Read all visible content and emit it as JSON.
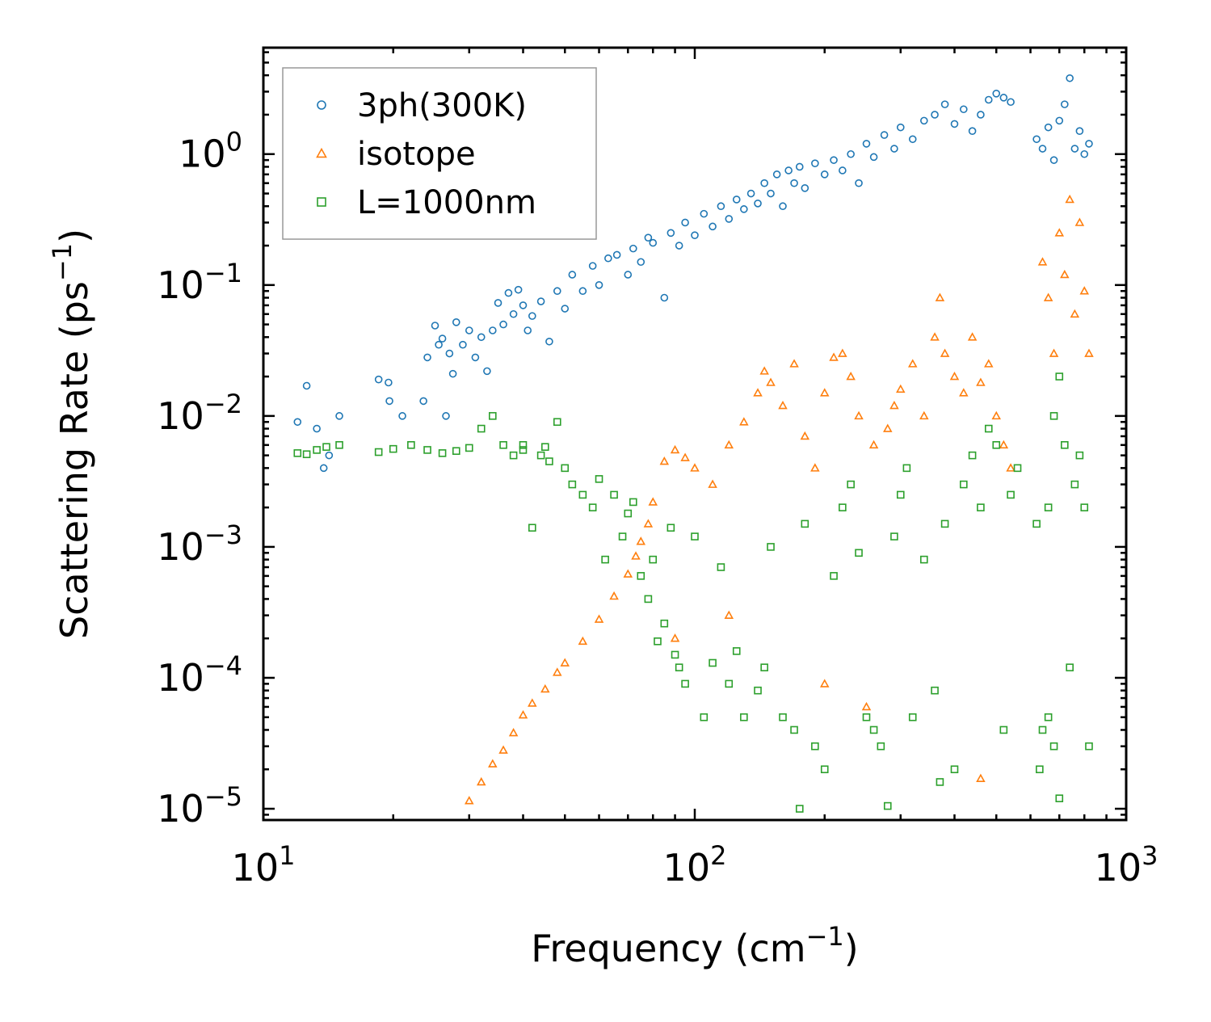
{
  "chart_data": {
    "type": "scatter",
    "title": "",
    "xlabel": "Frequency (cm",
    "xlabel_sup": "−1",
    "xlabel_end": ")",
    "ylabel": "Scattering Rate (ps",
    "ylabel_sup": "−1",
    "ylabel_end": ")",
    "xscale": "log",
    "yscale": "log",
    "xlim": [
      10,
      1000
    ],
    "ylim": [
      8.2e-06,
      6.5
    ],
    "grid": false,
    "legend_position": "upper-left",
    "x_ticks": [
      {
        "value": 10,
        "base": "10",
        "exp": "1"
      },
      {
        "value": 100,
        "base": "10",
        "exp": "2"
      },
      {
        "value": 1000,
        "base": "10",
        "exp": "3"
      }
    ],
    "y_ticks": [
      {
        "value": 1e-05,
        "base": "10",
        "exp": "−5"
      },
      {
        "value": 0.0001,
        "base": "10",
        "exp": "−4"
      },
      {
        "value": 0.001,
        "base": "10",
        "exp": "−3"
      },
      {
        "value": 0.01,
        "base": "10",
        "exp": "−2"
      },
      {
        "value": 0.1,
        "base": "10",
        "exp": "−1"
      },
      {
        "value": 1,
        "base": "10",
        "exp": "0"
      }
    ],
    "series": [
      {
        "name": "3ph(300K)",
        "marker": "circle",
        "color": "#1f77b4",
        "points": [
          [
            12.0,
            0.009
          ],
          [
            12.6,
            0.017
          ],
          [
            13.3,
            0.008
          ],
          [
            13.8,
            0.004
          ],
          [
            14.2,
            0.005
          ],
          [
            15.0,
            0.01
          ],
          [
            18.5,
            0.019
          ],
          [
            19.5,
            0.018
          ],
          [
            19.6,
            0.013
          ],
          [
            21.0,
            0.01
          ],
          [
            23.5,
            0.013
          ],
          [
            24.0,
            0.028
          ],
          [
            25.0,
            0.049
          ],
          [
            25.5,
            0.035
          ],
          [
            26.0,
            0.039
          ],
          [
            26.5,
            0.01
          ],
          [
            27.0,
            0.03
          ],
          [
            27.5,
            0.021
          ],
          [
            28.0,
            0.052
          ],
          [
            29.0,
            0.035
          ],
          [
            30.0,
            0.045
          ],
          [
            31.0,
            0.028
          ],
          [
            32.0,
            0.04
          ],
          [
            33.0,
            0.022
          ],
          [
            34.0,
            0.045
          ],
          [
            35.0,
            0.073
          ],
          [
            36.0,
            0.05
          ],
          [
            37.0,
            0.087
          ],
          [
            38.0,
            0.06
          ],
          [
            39.0,
            0.092
          ],
          [
            40.0,
            0.07
          ],
          [
            41.0,
            0.045
          ],
          [
            42.0,
            0.058
          ],
          [
            44.0,
            0.075
          ],
          [
            46.0,
            0.037
          ],
          [
            48.0,
            0.09
          ],
          [
            50.0,
            0.066
          ],
          [
            52.0,
            0.12
          ],
          [
            55.0,
            0.09
          ],
          [
            58.0,
            0.14
          ],
          [
            60.0,
            0.1
          ],
          [
            63.0,
            0.16
          ],
          [
            66.0,
            0.17
          ],
          [
            70.0,
            0.12
          ],
          [
            72.0,
            0.19
          ],
          [
            75.0,
            0.15
          ],
          [
            78.0,
            0.23
          ],
          [
            80.0,
            0.21
          ],
          [
            85.0,
            0.08
          ],
          [
            88.0,
            0.25
          ],
          [
            92.0,
            0.2
          ],
          [
            95.0,
            0.3
          ],
          [
            100.0,
            0.24
          ],
          [
            105.0,
            0.35
          ],
          [
            110.0,
            0.28
          ],
          [
            115.0,
            0.4
          ],
          [
            120.0,
            0.32
          ],
          [
            125.0,
            0.45
          ],
          [
            130.0,
            0.38
          ],
          [
            135.0,
            0.5
          ],
          [
            140.0,
            0.42
          ],
          [
            145.0,
            0.6
          ],
          [
            150.0,
            0.5
          ],
          [
            155.0,
            0.7
          ],
          [
            160.0,
            0.4
          ],
          [
            165.0,
            0.75
          ],
          [
            170.0,
            0.6
          ],
          [
            175.0,
            0.8
          ],
          [
            180.0,
            0.55
          ],
          [
            190.0,
            0.85
          ],
          [
            200.0,
            0.7
          ],
          [
            210.0,
            0.9
          ],
          [
            220.0,
            0.75
          ],
          [
            230.0,
            1.0
          ],
          [
            240.0,
            0.6
          ],
          [
            250.0,
            1.2
          ],
          [
            260.0,
            0.95
          ],
          [
            275.0,
            1.4
          ],
          [
            290.0,
            1.1
          ],
          [
            300.0,
            1.6
          ],
          [
            320.0,
            1.3
          ],
          [
            340.0,
            1.8
          ],
          [
            360.0,
            2.0
          ],
          [
            380.0,
            2.4
          ],
          [
            400.0,
            1.7
          ],
          [
            420.0,
            2.2
          ],
          [
            440.0,
            1.5
          ],
          [
            460.0,
            2.0
          ],
          [
            480.0,
            2.6
          ],
          [
            500.0,
            2.9
          ],
          [
            520.0,
            2.7
          ],
          [
            540.0,
            2.5
          ],
          [
            620.0,
            1.3
          ],
          [
            640.0,
            1.1
          ],
          [
            660.0,
            1.6
          ],
          [
            680.0,
            0.9
          ],
          [
            700.0,
            1.8
          ],
          [
            720.0,
            2.4
          ],
          [
            740.0,
            3.8
          ],
          [
            760.0,
            1.1
          ],
          [
            780.0,
            1.5
          ],
          [
            800.0,
            1.0
          ],
          [
            820.0,
            1.2
          ]
        ]
      },
      {
        "name": "isotope",
        "marker": "triangle",
        "color": "#ff7f0e",
        "points": [
          [
            30.0,
            1.15e-05
          ],
          [
            32.0,
            1.6e-05
          ],
          [
            34.0,
            2.2e-05
          ],
          [
            36.0,
            2.8e-05
          ],
          [
            38.0,
            3.8e-05
          ],
          [
            40.0,
            5.2e-05
          ],
          [
            42.0,
            6.4e-05
          ],
          [
            45.0,
            8.2e-05
          ],
          [
            48.0,
            0.00011
          ],
          [
            50.0,
            0.00013
          ],
          [
            55.0,
            0.00019
          ],
          [
            60.0,
            0.00028
          ],
          [
            65.0,
            0.00042
          ],
          [
            70.0,
            0.00062
          ],
          [
            73.0,
            0.00085
          ],
          [
            75.0,
            0.0011
          ],
          [
            78.0,
            0.0015
          ],
          [
            80.0,
            0.0022
          ],
          [
            85.0,
            0.0045
          ],
          [
            90.0,
            0.0055
          ],
          [
            95.0,
            0.0048
          ],
          [
            100.0,
            0.004
          ],
          [
            110.0,
            0.003
          ],
          [
            120.0,
            0.006
          ],
          [
            130.0,
            0.009
          ],
          [
            140.0,
            0.015
          ],
          [
            145.0,
            0.022
          ],
          [
            150.0,
            0.018
          ],
          [
            160.0,
            0.012
          ],
          [
            170.0,
            0.025
          ],
          [
            180.0,
            0.007
          ],
          [
            190.0,
            0.004
          ],
          [
            200.0,
            0.015
          ],
          [
            210.0,
            0.028
          ],
          [
            220.0,
            0.03
          ],
          [
            230.0,
            0.02
          ],
          [
            240.0,
            0.01
          ],
          [
            260.0,
            0.006
          ],
          [
            280.0,
            0.008
          ],
          [
            290.0,
            0.012
          ],
          [
            300.0,
            0.016
          ],
          [
            320.0,
            0.025
          ],
          [
            340.0,
            0.01
          ],
          [
            360.0,
            0.04
          ],
          [
            370.0,
            0.08
          ],
          [
            380.0,
            0.03
          ],
          [
            400.0,
            0.02
          ],
          [
            420.0,
            0.015
          ],
          [
            440.0,
            0.04
          ],
          [
            460.0,
            0.018
          ],
          [
            480.0,
            0.025
          ],
          [
            500.0,
            0.01
          ],
          [
            520.0,
            0.006
          ],
          [
            540.0,
            0.004
          ],
          [
            640.0,
            0.15
          ],
          [
            660.0,
            0.08
          ],
          [
            680.0,
            0.03
          ],
          [
            700.0,
            0.25
          ],
          [
            720.0,
            0.12
          ],
          [
            740.0,
            0.45
          ],
          [
            760.0,
            0.06
          ],
          [
            780.0,
            0.3
          ],
          [
            800.0,
            0.09
          ],
          [
            820.0,
            0.03
          ],
          [
            460.0,
            1.7e-05
          ],
          [
            200.0,
            9e-05
          ],
          [
            250.0,
            6e-05
          ],
          [
            120.0,
            0.0003
          ],
          [
            90.0,
            0.0002
          ]
        ]
      },
      {
        "name": "L=1000nm",
        "marker": "square",
        "color": "#2ca02c",
        "points": [
          [
            12.0,
            0.0052
          ],
          [
            12.6,
            0.0051
          ],
          [
            13.3,
            0.0055
          ],
          [
            14.0,
            0.0058
          ],
          [
            15.0,
            0.006
          ],
          [
            18.5,
            0.0053
          ],
          [
            20.0,
            0.0056
          ],
          [
            22.0,
            0.006
          ],
          [
            24.0,
            0.0055
          ],
          [
            26.0,
            0.0052
          ],
          [
            28.0,
            0.0054
          ],
          [
            30.0,
            0.0057
          ],
          [
            32.0,
            0.008
          ],
          [
            34.0,
            0.01
          ],
          [
            36.0,
            0.006
          ],
          [
            38.0,
            0.005
          ],
          [
            40.0,
            0.0055
          ],
          [
            42.0,
            0.0014
          ],
          [
            44.0,
            0.005
          ],
          [
            46.0,
            0.0045
          ],
          [
            48.0,
            0.009
          ],
          [
            50.0,
            0.004
          ],
          [
            52.0,
            0.003
          ],
          [
            55.0,
            0.0025
          ],
          [
            58.0,
            0.002
          ],
          [
            60.0,
            0.0033
          ],
          [
            62.0,
            0.0008
          ],
          [
            65.0,
            0.0025
          ],
          [
            68.0,
            0.0012
          ],
          [
            70.0,
            0.0018
          ],
          [
            72.0,
            0.0022
          ],
          [
            75.0,
            0.0006
          ],
          [
            78.0,
            0.0004
          ],
          [
            80.0,
            0.0008
          ],
          [
            82.0,
            0.00019
          ],
          [
            85.0,
            0.00026
          ],
          [
            88.0,
            0.0014
          ],
          [
            90.0,
            0.00015
          ],
          [
            92.0,
            0.00012
          ],
          [
            95.0,
            9e-05
          ],
          [
            100.0,
            0.0012
          ],
          [
            105.0,
            5e-05
          ],
          [
            110.0,
            0.00013
          ],
          [
            115.0,
            0.0007
          ],
          [
            120.0,
            9e-05
          ],
          [
            125.0,
            0.00016
          ],
          [
            130.0,
            5e-05
          ],
          [
            140.0,
            8e-05
          ],
          [
            145.0,
            0.00012
          ],
          [
            150.0,
            0.001
          ],
          [
            160.0,
            5e-05
          ],
          [
            170.0,
            4e-05
          ],
          [
            175.0,
            1e-05
          ],
          [
            180.0,
            0.0015
          ],
          [
            190.0,
            3e-05
          ],
          [
            200.0,
            2e-05
          ],
          [
            210.0,
            0.0006
          ],
          [
            220.0,
            0.002
          ],
          [
            230.0,
            0.003
          ],
          [
            240.0,
            0.0009
          ],
          [
            250.0,
            5e-05
          ],
          [
            260.0,
            4e-05
          ],
          [
            270.0,
            3e-05
          ],
          [
            280.0,
            1.05e-05
          ],
          [
            290.0,
            0.0012
          ],
          [
            300.0,
            0.0025
          ],
          [
            310.0,
            0.004
          ],
          [
            320.0,
            5e-05
          ],
          [
            340.0,
            0.0008
          ],
          [
            360.0,
            8e-05
          ],
          [
            370.0,
            1.6e-05
          ],
          [
            380.0,
            0.0015
          ],
          [
            400.0,
            2e-05
          ],
          [
            420.0,
            0.003
          ],
          [
            440.0,
            0.005
          ],
          [
            460.0,
            0.002
          ],
          [
            480.0,
            0.008
          ],
          [
            500.0,
            0.006
          ],
          [
            520.0,
            4e-05
          ],
          [
            540.0,
            0.0025
          ],
          [
            620.0,
            0.0015
          ],
          [
            630.0,
            2e-05
          ],
          [
            640.0,
            4e-05
          ],
          [
            660.0,
            0.002
          ],
          [
            680.0,
            0.01
          ],
          [
            700.0,
            0.02
          ],
          [
            720.0,
            0.006
          ],
          [
            740.0,
            0.00012
          ],
          [
            760.0,
            0.003
          ],
          [
            780.0,
            0.005
          ],
          [
            800.0,
            0.002
          ],
          [
            820.0,
            3e-05
          ],
          [
            700.0,
            1.2e-05
          ],
          [
            680.0,
            3e-05
          ],
          [
            660.0,
            5e-05
          ],
          [
            560.0,
            0.004
          ],
          [
            40.0,
            0.006
          ],
          [
            45.0,
            0.0058
          ]
        ]
      }
    ]
  }
}
